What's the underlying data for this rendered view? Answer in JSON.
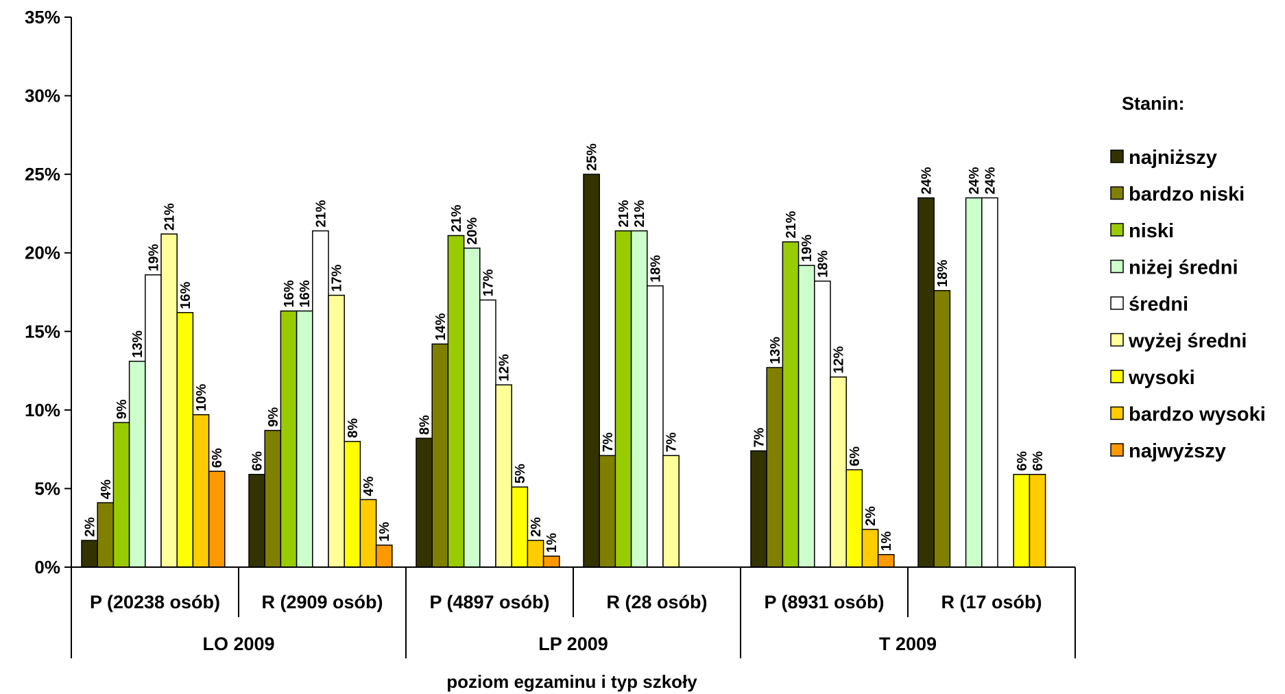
{
  "chart_data": {
    "type": "bar",
    "xlabel": "poziom egzaminu i typ szkoły",
    "ylabel": "",
    "ylim": [
      0,
      35
    ],
    "yticks": [
      "0%",
      "5%",
      "10%",
      "15%",
      "20%",
      "25%",
      "30%",
      "35%"
    ],
    "legend_title": "Stanin:",
    "legend_position": "right",
    "groups": [
      {
        "label": "LO 2009",
        "categories": [
          "P (20238 osób)",
          "R (2909 osób)"
        ]
      },
      {
        "label": "LP 2009",
        "categories": [
          "P (4897 osób)",
          "R (28 osób)"
        ]
      },
      {
        "label": "T 2009",
        "categories": [
          "P (8931 osób)",
          "R (17 osób)"
        ]
      }
    ],
    "categories": [
      "P (20238 osób)",
      "R (2909 osób)",
      "P (4897 osób)",
      "R (28 osób)",
      "P (8931 osób)",
      "R (17 osób)"
    ],
    "series": [
      {
        "name": "najniższy",
        "color": "#333300",
        "values": [
          1.7,
          5.9,
          8.2,
          25.0,
          7.4,
          23.5
        ],
        "labels": [
          "2%",
          "6%",
          "8%",
          "25%",
          "7%",
          "24%"
        ]
      },
      {
        "name": "bardzo niski",
        "color": "#808000",
        "values": [
          4.1,
          8.7,
          14.2,
          7.1,
          12.7,
          17.6
        ],
        "labels": [
          "4%",
          "9%",
          "14%",
          "7%",
          "13%",
          "18%"
        ]
      },
      {
        "name": "niski",
        "color": "#99CC00",
        "values": [
          9.2,
          16.3,
          21.1,
          21.4,
          20.7,
          0
        ],
        "labels": [
          "9%",
          "16%",
          "21%",
          "21%",
          "21%",
          ""
        ]
      },
      {
        "name": "niżej średni",
        "color": "#CCFFCC",
        "values": [
          13.1,
          16.3,
          20.3,
          21.4,
          19.2,
          23.5
        ],
        "labels": [
          "13%",
          "16%",
          "20%",
          "21%",
          "19%",
          "24%"
        ]
      },
      {
        "name": "średni",
        "color": "#FFFFFF",
        "values": [
          18.6,
          21.4,
          17.0,
          17.9,
          18.2,
          23.5
        ],
        "labels": [
          "19%",
          "21%",
          "17%",
          "18%",
          "18%",
          "24%"
        ]
      },
      {
        "name": "wyżej średni",
        "color": "#FFFF99",
        "values": [
          21.2,
          17.3,
          11.6,
          7.1,
          12.1,
          0
        ],
        "labels": [
          "21%",
          "17%",
          "12%",
          "7%",
          "12%",
          ""
        ]
      },
      {
        "name": "wysoki",
        "color": "#FFFF00",
        "values": [
          16.2,
          8.0,
          5.1,
          0,
          6.2,
          5.9
        ],
        "labels": [
          "16%",
          "8%",
          "5%",
          "",
          "6%",
          "6%"
        ]
      },
      {
        "name": "bardzo wysoki",
        "color": "#FFCC00",
        "values": [
          9.7,
          4.3,
          1.7,
          0,
          2.4,
          5.9
        ],
        "labels": [
          "10%",
          "4%",
          "2%",
          "",
          "2%",
          "6%"
        ]
      },
      {
        "name": "najwyższy",
        "color": "#FF9900",
        "values": [
          6.1,
          1.4,
          0.7,
          0,
          0.8,
          0
        ],
        "labels": [
          "6%",
          "1%",
          "1%",
          "",
          "1%",
          ""
        ]
      }
    ]
  }
}
